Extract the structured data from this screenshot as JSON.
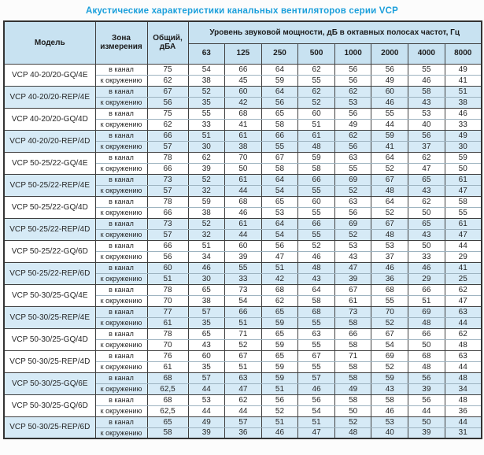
{
  "title": "Акустические характеристики канальных вентиляторов  серии VCP",
  "table": {
    "header": {
      "model": "Модель",
      "zone": "Зона измерения",
      "total": "Общий, дБА",
      "octave_title": "Уровень звуковой мощности, дБ в октавных полосах частот, Гц",
      "frequencies": [
        "63",
        "125",
        "250",
        "500",
        "1000",
        "2000",
        "4000",
        "8000"
      ]
    },
    "zone_labels": {
      "duct": "в канал",
      "ambient": "к окружению"
    },
    "rows": [
      {
        "model": "VCP 40-20/20-GQ/4E",
        "highlight": false,
        "duct": {
          "total": "75",
          "bands": [
            "54",
            "66",
            "64",
            "62",
            "56",
            "56",
            "55",
            "49"
          ]
        },
        "ambient": {
          "total": "62",
          "bands": [
            "38",
            "45",
            "59",
            "55",
            "56",
            "49",
            "46",
            "41"
          ]
        }
      },
      {
        "model": "VCP 40-20/20-REP/4E",
        "highlight": true,
        "duct": {
          "total": "67",
          "bands": [
            "52",
            "60",
            "64",
            "62",
            "62",
            "60",
            "58",
            "51"
          ]
        },
        "ambient": {
          "total": "56",
          "bands": [
            "35",
            "42",
            "56",
            "52",
            "53",
            "46",
            "43",
            "38"
          ]
        }
      },
      {
        "model": "VCP 40-20/20-GQ/4D",
        "highlight": false,
        "duct": {
          "total": "75",
          "bands": [
            "55",
            "68",
            "65",
            "60",
            "56",
            "55",
            "53",
            "46"
          ]
        },
        "ambient": {
          "total": "62",
          "bands": [
            "33",
            "41",
            "58",
            "51",
            "49",
            "44",
            "40",
            "33"
          ]
        }
      },
      {
        "model": "VCP 40-20/20-REP/4D",
        "highlight": true,
        "duct": {
          "total": "66",
          "bands": [
            "51",
            "61",
            "66",
            "61",
            "62",
            "59",
            "56",
            "49"
          ]
        },
        "ambient": {
          "total": "57",
          "bands": [
            "30",
            "38",
            "55",
            "48",
            "56",
            "41",
            "37",
            "30"
          ]
        }
      },
      {
        "model": "VCP 50-25/22-GQ/4E",
        "highlight": false,
        "duct": {
          "total": "78",
          "bands": [
            "62",
            "70",
            "67",
            "59",
            "63",
            "64",
            "62",
            "59"
          ]
        },
        "ambient": {
          "total": "66",
          "bands": [
            "39",
            "50",
            "58",
            "58",
            "55",
            "52",
            "47",
            "50"
          ]
        }
      },
      {
        "model": "VCP 50-25/22-REP/4E",
        "highlight": true,
        "duct": {
          "total": "73",
          "bands": [
            "52",
            "61",
            "64",
            "66",
            "69",
            "67",
            "65",
            "61"
          ]
        },
        "ambient": {
          "total": "57",
          "bands": [
            "32",
            "44",
            "54",
            "55",
            "52",
            "48",
            "43",
            "47"
          ]
        }
      },
      {
        "model": "VCP 50-25/22-GQ/4D",
        "highlight": false,
        "duct": {
          "total": "78",
          "bands": [
            "59",
            "68",
            "65",
            "60",
            "63",
            "64",
            "62",
            "58"
          ]
        },
        "ambient": {
          "total": "66",
          "bands": [
            "38",
            "46",
            "53",
            "55",
            "56",
            "52",
            "50",
            "55"
          ]
        }
      },
      {
        "model": "VCP 50-25/22-REP/4D",
        "highlight": true,
        "duct": {
          "total": "73",
          "bands": [
            "52",
            "61",
            "64",
            "66",
            "69",
            "67",
            "65",
            "61"
          ]
        },
        "ambient": {
          "total": "57",
          "bands": [
            "32",
            "44",
            "54",
            "55",
            "52",
            "48",
            "43",
            "47"
          ]
        }
      },
      {
        "model": "VCP 50-25/22-GQ/6D",
        "highlight": false,
        "duct": {
          "total": "66",
          "bands": [
            "51",
            "60",
            "56",
            "52",
            "53",
            "53",
            "50",
            "44"
          ]
        },
        "ambient": {
          "total": "56",
          "bands": [
            "34",
            "39",
            "47",
            "46",
            "43",
            "37",
            "33",
            "29"
          ]
        }
      },
      {
        "model": "VCP 50-25/22-REP/6D",
        "highlight": true,
        "duct": {
          "total": "60",
          "bands": [
            "46",
            "55",
            "51",
            "48",
            "47",
            "46",
            "46",
            "41"
          ]
        },
        "ambient": {
          "total": "51",
          "bands": [
            "30",
            "33",
            "42",
            "43",
            "39",
            "36",
            "29",
            "25"
          ]
        }
      },
      {
        "model": "VCP 50-30/25-GQ/4E",
        "highlight": false,
        "duct": {
          "total": "78",
          "bands": [
            "65",
            "73",
            "68",
            "64",
            "67",
            "68",
            "66",
            "62"
          ]
        },
        "ambient": {
          "total": "70",
          "bands": [
            "38",
            "54",
            "62",
            "58",
            "61",
            "55",
            "51",
            "47"
          ]
        }
      },
      {
        "model": "VCP 50-30/25-REP/4E",
        "highlight": true,
        "duct": {
          "total": "77",
          "bands": [
            "57",
            "66",
            "65",
            "68",
            "73",
            "70",
            "69",
            "63"
          ]
        },
        "ambient": {
          "total": "61",
          "bands": [
            "35",
            "51",
            "59",
            "55",
            "58",
            "52",
            "48",
            "44"
          ]
        }
      },
      {
        "model": "VCP 50-30/25-GQ/4D",
        "highlight": false,
        "duct": {
          "total": "78",
          "bands": [
            "65",
            "71",
            "65",
            "63",
            "66",
            "67",
            "66",
            "62"
          ]
        },
        "ambient": {
          "total": "70",
          "bands": [
            "43",
            "52",
            "59",
            "55",
            "58",
            "54",
            "50",
            "48"
          ]
        }
      },
      {
        "model": "VCP 50-30/25-REP/4D",
        "highlight": false,
        "duct": {
          "total": "76",
          "bands": [
            "60",
            "67",
            "65",
            "67",
            "71",
            "69",
            "68",
            "63"
          ]
        },
        "ambient": {
          "total": "61",
          "bands": [
            "35",
            "51",
            "59",
            "55",
            "58",
            "52",
            "48",
            "44"
          ]
        }
      },
      {
        "model": "VCP 50-30/25-GQ/6E",
        "highlight": true,
        "duct": {
          "total": "68",
          "bands": [
            "57",
            "63",
            "59",
            "57",
            "58",
            "59",
            "56",
            "48"
          ]
        },
        "ambient": {
          "total": "62,5",
          "bands": [
            "44",
            "47",
            "51",
            "46",
            "49",
            "43",
            "39",
            "34"
          ]
        }
      },
      {
        "model": "VCP 50-30/25-GQ/6D",
        "highlight": false,
        "duct": {
          "total": "68",
          "bands": [
            "53",
            "62",
            "56",
            "56",
            "58",
            "58",
            "56",
            "48"
          ]
        },
        "ambient": {
          "total": "62,5",
          "bands": [
            "44",
            "44",
            "52",
            "54",
            "50",
            "46",
            "44",
            "36"
          ]
        }
      },
      {
        "model": "VCP 50-30/25-REP/6D",
        "highlight": true,
        "duct": {
          "total": "65",
          "bands": [
            "49",
            "57",
            "51",
            "51",
            "52",
            "53",
            "50",
            "44"
          ]
        },
        "ambient": {
          "total": "58",
          "bands": [
            "39",
            "36",
            "46",
            "47",
            "48",
            "40",
            "39",
            "31"
          ]
        }
      }
    ]
  },
  "colors": {
    "title_color": "#1b9fdb",
    "header_bg": "#c8e2f1",
    "highlight_bg": "#d6eaf6",
    "border_dark": "#404040",
    "border_light": "#9db3c0",
    "text_color": "#262626"
  }
}
